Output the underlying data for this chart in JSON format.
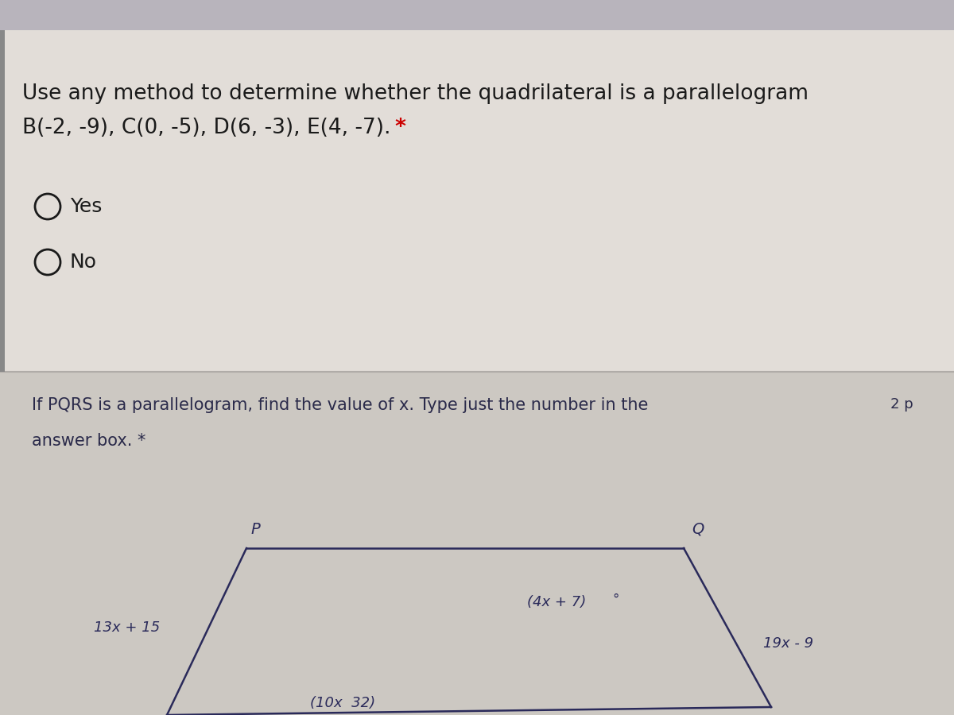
{
  "bg_color": "#d8d4ce",
  "top_bar_color": "#b8b4bc",
  "section1_bg": "#e2ddd8",
  "section2_bg": "#ccc8c2",
  "divider_color": "#b0aca8",
  "question1_line1": "Use any method to determine whether the quadrilateral is a parallelogram",
  "question1_line2": "B(-2, -9), C(0, -5), D(6, -3), E(4, -7).",
  "question1_star": " *",
  "radio_yes": "Yes",
  "radio_no": "No",
  "question2_line1": "If PQRS is a parallelogram, find the value of x. Type just the number in the",
  "question2_pts": "2 p",
  "question2_line2": "answer box.",
  "question2_star": " *",
  "para_label_P": "P",
  "para_label_Q": "Q",
  "para_angle_label": "(4x + 7)",
  "para_left_label": "13x + 15",
  "para_right_label": "19x - 9",
  "para_bottom_label": "(10x  32)",
  "text_color": "#1a1a1a",
  "q2_text_color": "#2a2a4a",
  "shape_color": "#2a2a5a",
  "q1_fontsize": 19,
  "q2_fontsize": 15,
  "radio_fontsize": 18,
  "shape_fontsize": 13
}
